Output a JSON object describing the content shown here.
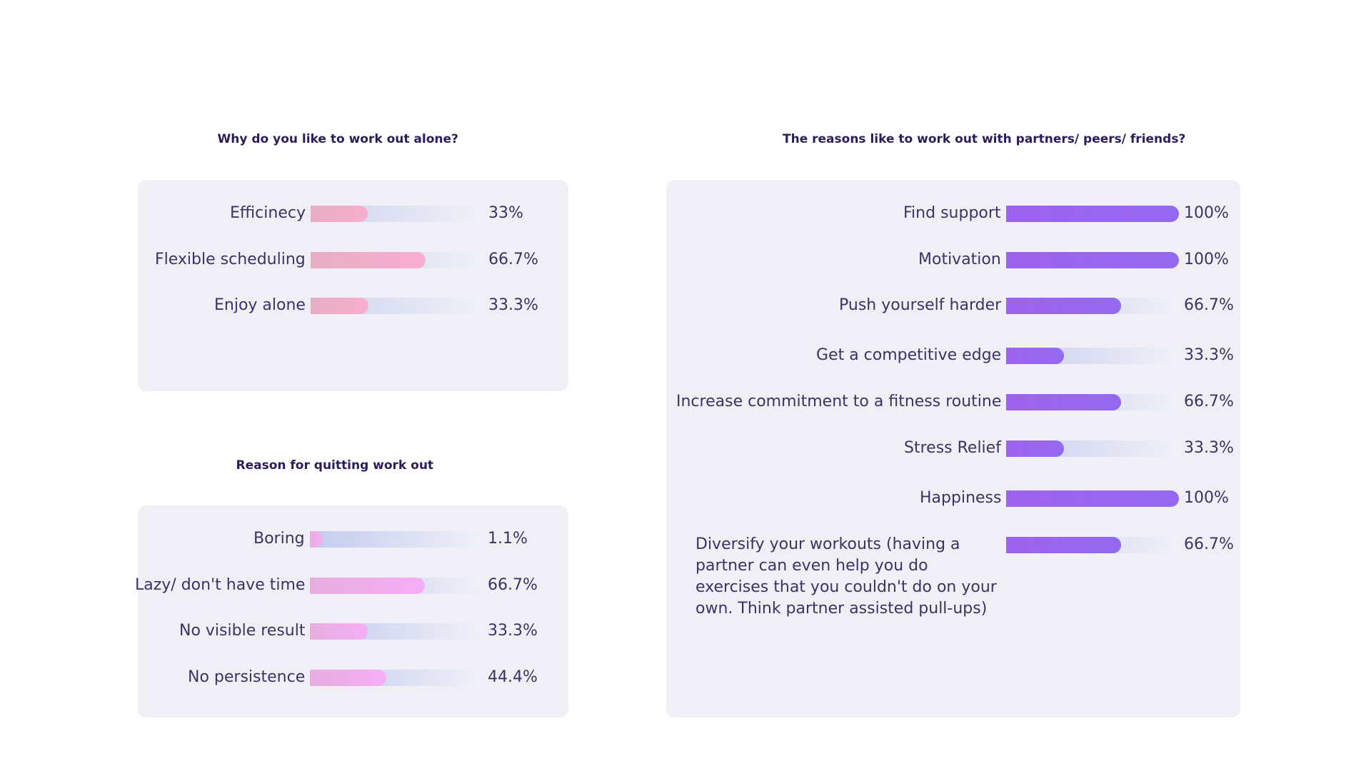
{
  "chart_data": [
    {
      "type": "bar",
      "title": "Why do you like to work out alone?",
      "categories": [
        "Efficinecy",
        "Flexible scheduling",
        "Enjoy alone"
      ],
      "values": [
        33,
        66.7,
        33.3
      ],
      "value_labels": [
        "33%",
        "66.7%",
        "33.3%"
      ],
      "xlim": [
        0,
        100
      ],
      "colors": {
        "fill_start": "#e6aec2",
        "fill_end": "#f9aecf",
        "track_start": "#ced4ee",
        "track_end": "#eff0f7"
      }
    },
    {
      "type": "bar",
      "title": "Reason for quitting work out",
      "categories": [
        "Boring",
        "Lazy/ don't have time",
        "No visible result",
        "No persistence"
      ],
      "values": [
        1.1,
        66.7,
        33.3,
        44.4
      ],
      "value_labels": [
        "1.1%",
        "66.7%",
        "33.3%",
        "44.4%"
      ],
      "xlim": [
        0,
        100
      ],
      "colors": {
        "fill_start": "#e6aedf",
        "fill_end": "#f6aef6",
        "track_start": "#c4cbee",
        "track_end": "#eff0f7"
      }
    },
    {
      "type": "bar",
      "title": "The reasons like to work out with partners/ peers/ friends?",
      "categories": [
        "Find support",
        "Motivation",
        "Push yourself harder",
        "Get a competitive edge",
        "Increase commitment to a fitness routine",
        "Stress Relief",
        "Happiness",
        "Diversify your workouts (having a partner can even help you do exercises that you couldn't do on your own. Think partner assisted pull-ups)"
      ],
      "values": [
        100,
        100,
        66.7,
        33.3,
        66.7,
        33.3,
        100,
        66.7
      ],
      "value_labels": [
        "100%",
        "100%",
        "66.7%",
        "33.3%",
        "66.7%",
        "33.3%",
        "100%",
        "66.7%"
      ],
      "xlim": [
        0,
        100
      ],
      "colors": {
        "fill_start": "#9e62ef",
        "fill_end": "#9469f0",
        "track_start": "#cad0ee",
        "track_end": "#eff0f7"
      }
    }
  ]
}
